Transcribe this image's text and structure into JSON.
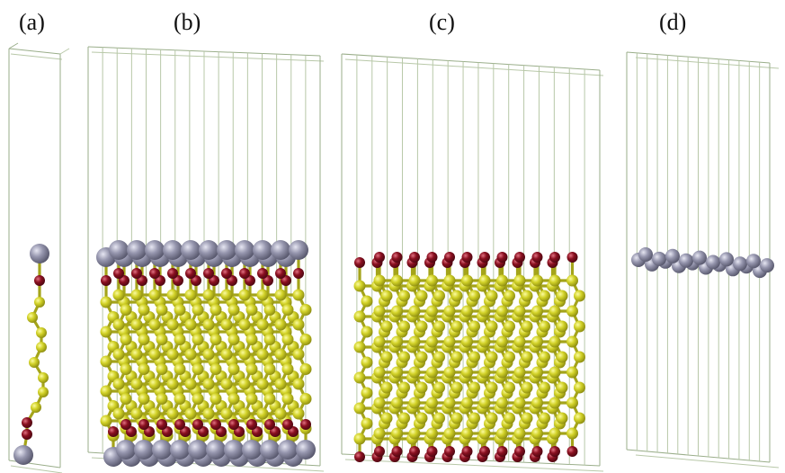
{
  "panels": [
    {
      "label": "(a)",
      "atoms": "ga-o-si-chain-with-ga-ends"
    },
    {
      "label": "(b)",
      "atoms": "ga-terminated-si-slab"
    },
    {
      "label": "(c)",
      "atoms": "o-terminated-si-slab"
    },
    {
      "label": "(d)",
      "atoms": "ga-monolayer"
    }
  ],
  "colors": {
    "cell_edge": "#9aae8a",
    "cell_edge_light": "#b8c8a8",
    "ga_atom": "#8a8aa0",
    "o_atom": "#7a0f1a",
    "si_atom": "#c8c81e",
    "bond": "#a4a41a"
  }
}
